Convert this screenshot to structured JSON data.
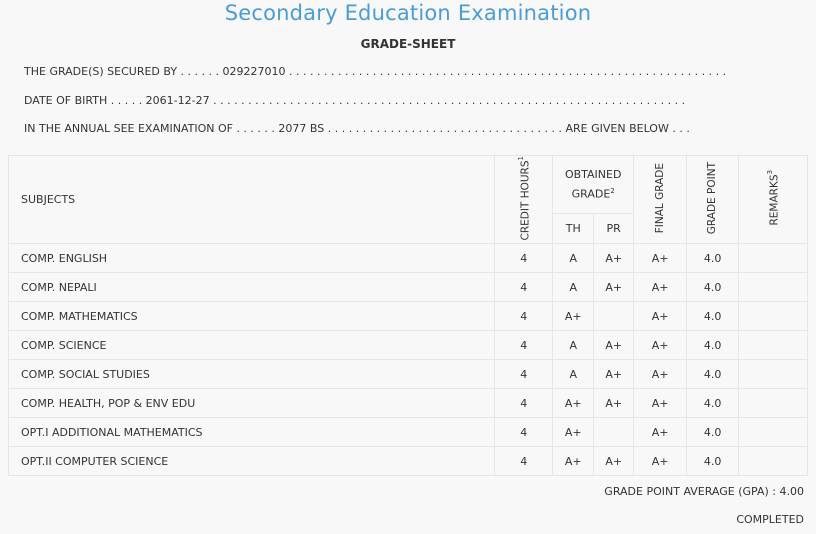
{
  "header": {
    "title": "Secondary Education Examination",
    "subtitle": "GRADE-SHEET"
  },
  "info": {
    "secured_line": "THE GRADE(S) SECURED BY . . . . . . 029227010 . . . . . . . . . . . . . . . . . . . . . . . . . . . . . . . . . . . . . . . . . . . . . . . . . . . . . . . . . . . . . . .",
    "dob_line": "DATE OF BIRTH . . . . . 2061-12-27 . . . . . . . . . . . . . . . . . . . . . . . . . . . . . . . . . . . . . . . . . . . . . . . . . . . . . . . . . . . . . . . . . . . .",
    "exam_line": "IN THE ANNUAL SEE EXAMINATION OF . . . . . . 2077 BS . . . . . . . . . . . . . . . . . . . . . . . . . . . . . . . . . . ARE GIVEN BELOW . . ."
  },
  "table": {
    "headers": {
      "subjects": "SUBJECTS",
      "credit_hours": "CREDIT HOURS",
      "credit_sup": "1",
      "obtained_grade": "OBTAINED GRADE",
      "obtained_sup": "2",
      "th": "TH",
      "pr": "PR",
      "final_grade": "FINAL GRADE",
      "grade_point": "GRADE POINT",
      "remarks": "REMARKS",
      "remarks_sup": "3"
    },
    "rows": [
      {
        "subject": "COMP. ENGLISH",
        "credit": "4",
        "th": "A",
        "pr": "A+",
        "final": "A+",
        "gp": "4.0",
        "remarks": ""
      },
      {
        "subject": "COMP. NEPALI",
        "credit": "4",
        "th": "A",
        "pr": "A+",
        "final": "A+",
        "gp": "4.0",
        "remarks": ""
      },
      {
        "subject": "COMP. MATHEMATICS",
        "credit": "4",
        "th": "A+",
        "pr": "",
        "final": "A+",
        "gp": "4.0",
        "remarks": ""
      },
      {
        "subject": "COMP. SCIENCE",
        "credit": "4",
        "th": "A",
        "pr": "A+",
        "final": "A+",
        "gp": "4.0",
        "remarks": ""
      },
      {
        "subject": "COMP. SOCIAL STUDIES",
        "credit": "4",
        "th": "A",
        "pr": "A+",
        "final": "A+",
        "gp": "4.0",
        "remarks": ""
      },
      {
        "subject": "COMP. HEALTH, POP & ENV EDU",
        "credit": "4",
        "th": "A+",
        "pr": "A+",
        "final": "A+",
        "gp": "4.0",
        "remarks": ""
      },
      {
        "subject": "OPT.I ADDITIONAL MATHEMATICS",
        "credit": "4",
        "th": "A+",
        "pr": "",
        "final": "A+",
        "gp": "4.0",
        "remarks": ""
      },
      {
        "subject": "OPT.II COMPUTER SCIENCE",
        "credit": "4",
        "th": "A+",
        "pr": "A+",
        "final": "A+",
        "gp": "4.0",
        "remarks": ""
      }
    ]
  },
  "footer": {
    "gpa_text": "GRADE POINT AVERAGE (GPA) : 4.00",
    "status": "COMPLETED"
  }
}
